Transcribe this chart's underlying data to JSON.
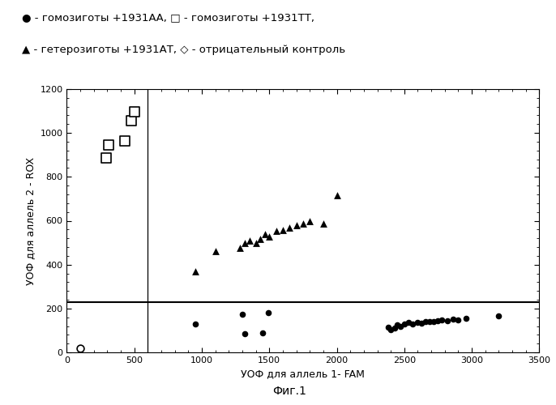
{
  "xlabel": "УОФ для аллель 1- FAM",
  "ylabel": "УОФ для аллель 2 - ROX",
  "fig_label": "Фиг.1",
  "xlim": [
    0,
    3500
  ],
  "ylim": [
    0,
    1200
  ],
  "xticks": [
    0,
    500,
    1000,
    1500,
    2000,
    2500,
    3000,
    3500
  ],
  "yticks": [
    0,
    200,
    400,
    600,
    800,
    1000,
    1200
  ],
  "vline": 600,
  "hline": 230,
  "legend_line1": "● - гомозиготы +1931АА, □ - гомозиготы +1931ТТ,",
  "legend_line2": "▲ - гетерозиготы +1931АТ, ◇ - отрицательный контроль",
  "AA_x": [
    950,
    1300,
    1320,
    1450,
    1490,
    2380,
    2400,
    2430,
    2450,
    2470,
    2500,
    2530,
    2560,
    2600,
    2630,
    2660,
    2690,
    2720,
    2750,
    2780,
    2820,
    2860,
    2900,
    2960,
    3200
  ],
  "AA_y": [
    130,
    175,
    85,
    90,
    180,
    115,
    105,
    110,
    125,
    118,
    130,
    135,
    128,
    138,
    133,
    140,
    142,
    140,
    145,
    148,
    145,
    150,
    148,
    155,
    165
  ],
  "TT_x": [
    290,
    310,
    430,
    480,
    505
  ],
  "TT_y": [
    885,
    945,
    965,
    1055,
    1095
  ],
  "AT_x": [
    950,
    1100,
    1280,
    1320,
    1355,
    1400,
    1430,
    1470,
    1500,
    1550,
    1600,
    1650,
    1700,
    1750,
    1800,
    1900,
    2000
  ],
  "AT_y": [
    370,
    460,
    478,
    497,
    508,
    498,
    518,
    538,
    528,
    555,
    558,
    568,
    578,
    588,
    598,
    588,
    718
  ],
  "NEG_x": [
    100
  ],
  "NEG_y": [
    18
  ],
  "background_color": "#ffffff",
  "marker_color": "#000000"
}
